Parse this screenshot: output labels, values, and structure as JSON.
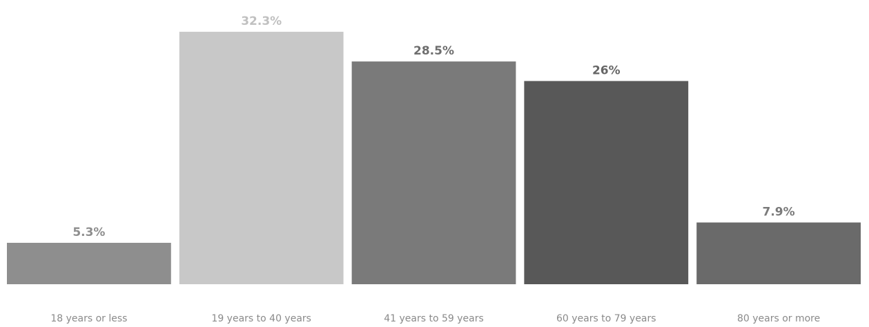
{
  "chart_data": {
    "type": "bar",
    "categories": [
      "18 years or less",
      "19 years to 40 years",
      "41 years to 59 years",
      "60 years to 79 years",
      "80 years or more"
    ],
    "values": [
      5.3,
      32.3,
      28.5,
      26,
      7.9
    ],
    "value_labels": [
      "5.3%",
      "32.3%",
      "28.5%",
      "26%",
      "7.9%"
    ],
    "colors": [
      "#8e8e8e",
      "#c8c8c8",
      "#7a7a7a",
      "#585858",
      "#6a6a6a"
    ],
    "label_colors": [
      "#8e8e8e",
      "#c0c0c0",
      "#6e6e6e",
      "#666666",
      "#7a7a7a"
    ],
    "ylim": [
      0,
      34.6
    ],
    "grid": false,
    "legend": "none"
  }
}
